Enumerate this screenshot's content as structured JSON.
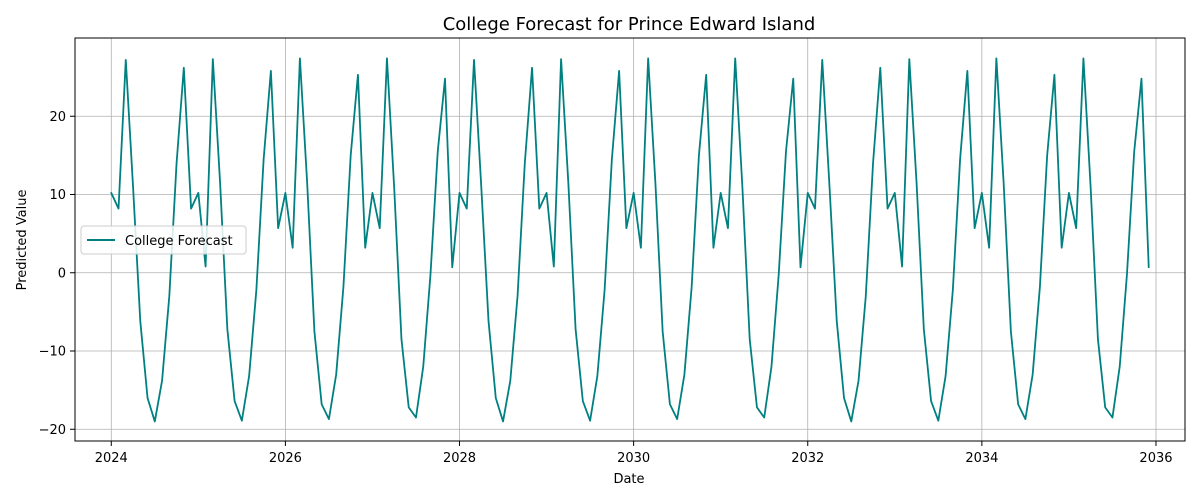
{
  "chart_data": {
    "type": "line",
    "title": "College Forecast for Prince Edward Island",
    "xlabel": "Date",
    "ylabel": "Predicted Value",
    "x_tick_labels": [
      "2024",
      "2026",
      "2028",
      "2030",
      "2032",
      "2034",
      "2036"
    ],
    "y_tick_labels": [
      "−20",
      "−10",
      "0",
      "10",
      "20"
    ],
    "y_ticks": [
      -20,
      -10,
      0,
      10,
      20
    ],
    "xlim": [
      "2023-08",
      "2036-05"
    ],
    "ylim": [
      -21.5,
      30
    ],
    "grid": true,
    "legend_position": "center-left",
    "colors": {
      "series": "#008080",
      "grid": "#b0b0b0",
      "axes": "#000000"
    },
    "x": [
      "2024-01",
      "2024-02",
      "2024-03",
      "2024-04",
      "2024-05",
      "2024-06",
      "2024-07",
      "2024-08",
      "2024-09",
      "2024-10",
      "2024-11",
      "2024-12",
      "2025-01",
      "2025-02",
      "2025-03",
      "2025-04",
      "2025-05",
      "2025-06",
      "2025-07",
      "2025-08",
      "2025-09",
      "2025-10",
      "2025-11",
      "2025-12",
      "2026-01",
      "2026-02",
      "2026-03",
      "2026-04",
      "2026-05",
      "2026-06",
      "2026-07",
      "2026-08",
      "2026-09",
      "2026-10",
      "2026-11",
      "2026-12",
      "2027-01",
      "2027-02",
      "2027-03",
      "2027-04",
      "2027-05",
      "2027-06",
      "2027-07",
      "2027-08",
      "2027-09",
      "2027-10",
      "2027-11",
      "2027-12",
      "2028-01",
      "2028-02",
      "2028-03",
      "2028-04",
      "2028-05",
      "2028-06",
      "2028-07",
      "2028-08",
      "2028-09",
      "2028-10",
      "2028-11",
      "2028-12",
      "2029-01",
      "2029-02",
      "2029-03",
      "2029-04",
      "2029-05",
      "2029-06",
      "2029-07",
      "2029-08",
      "2029-09",
      "2029-10",
      "2029-11",
      "2029-12",
      "2030-01",
      "2030-02",
      "2030-03",
      "2030-04",
      "2030-05",
      "2030-06",
      "2030-07",
      "2030-08",
      "2030-09",
      "2030-10",
      "2030-11",
      "2030-12",
      "2031-01",
      "2031-02",
      "2031-03",
      "2031-04",
      "2031-05",
      "2031-06",
      "2031-07",
      "2031-08",
      "2031-09",
      "2031-10",
      "2031-11",
      "2031-12",
      "2032-01",
      "2032-02",
      "2032-03",
      "2032-04",
      "2032-05",
      "2032-06",
      "2032-07",
      "2032-08",
      "2032-09",
      "2032-10",
      "2032-11",
      "2032-12",
      "2033-01",
      "2033-02",
      "2033-03",
      "2033-04",
      "2033-05",
      "2033-06",
      "2033-07",
      "2033-08",
      "2033-09",
      "2033-10",
      "2033-11",
      "2033-12",
      "2034-01",
      "2034-02",
      "2034-03",
      "2034-04",
      "2034-05",
      "2034-06",
      "2034-07",
      "2034-08",
      "2034-09",
      "2034-10",
      "2034-11",
      "2034-12",
      "2035-01",
      "2035-02",
      "2035-03",
      "2035-04",
      "2035-05",
      "2035-06",
      "2035-07",
      "2035-08",
      "2035-09",
      "2035-10",
      "2035-11",
      "2035-12"
    ],
    "series": [
      {
        "name": "College Forecast",
        "values": [
          10.2,
          8.2,
          27.2,
          11.0,
          -6.2,
          -16.0,
          -19.0,
          -13.8,
          -3.0,
          14.0,
          26.2,
          8.2,
          10.2,
          0.8,
          27.3,
          11.5,
          -7.2,
          -16.4,
          -18.9,
          -13.2,
          -2.2,
          14.5,
          25.8,
          5.7,
          10.2,
          3.2,
          27.4,
          11.5,
          -7.5,
          -16.8,
          -18.7,
          -13.0,
          -1.8,
          15.0,
          25.3,
          3.2,
          10.2,
          5.7,
          27.4,
          10.8,
          -8.5,
          -17.2,
          -18.5,
          -12.0,
          -0.2,
          15.5,
          24.8,
          0.7,
          10.2,
          8.2,
          27.2,
          11.0,
          -6.2,
          -16.0,
          -19.0,
          -13.8,
          -3.0,
          14.0,
          26.2,
          8.2,
          10.2,
          0.8,
          27.3,
          11.5,
          -7.2,
          -16.4,
          -18.9,
          -13.2,
          -2.2,
          14.5,
          25.8,
          5.7,
          10.2,
          3.2,
          27.4,
          11.5,
          -7.5,
          -16.8,
          -18.7,
          -13.0,
          -1.8,
          15.0,
          25.3,
          3.2,
          10.2,
          5.7,
          27.4,
          10.8,
          -8.5,
          -17.2,
          -18.5,
          -12.0,
          -0.2,
          15.5,
          24.8,
          0.7,
          10.2,
          8.2,
          27.2,
          11.0,
          -6.2,
          -16.0,
          -19.0,
          -13.8,
          -3.0,
          14.0,
          26.2,
          8.2,
          10.2,
          0.8,
          27.3,
          11.5,
          -7.2,
          -16.4,
          -18.9,
          -13.2,
          -2.2,
          14.5,
          25.8,
          5.7,
          10.2,
          3.2,
          27.4,
          11.5,
          -7.5,
          -16.8,
          -18.7,
          -13.0,
          -1.8,
          15.0,
          25.3,
          3.2,
          10.2,
          5.7,
          27.4,
          10.8,
          -8.5,
          -17.2,
          -18.5,
          -12.0,
          -0.2,
          15.5,
          24.8,
          0.7
        ]
      }
    ]
  }
}
